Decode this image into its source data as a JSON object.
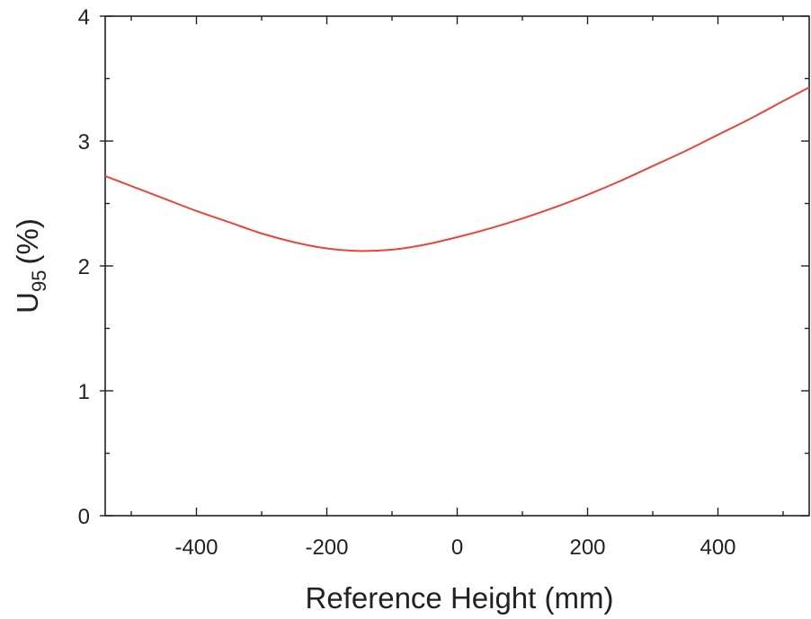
{
  "chart_data": {
    "type": "line",
    "title": "",
    "xlabel": "Reference Height (mm)",
    "ylabel_main": "U",
    "ylabel_sub": "95",
    "ylabel_unit": "(%)",
    "xlim": [
      -540,
      540
    ],
    "ylim": [
      0,
      4
    ],
    "x_ticks": [
      -400,
      -200,
      0,
      200,
      400
    ],
    "x_tick_labels": [
      "-400",
      "-200",
      "0",
      "200",
      "400"
    ],
    "y_ticks": [
      0,
      1,
      2,
      3,
      4
    ],
    "y_tick_labels": [
      "0",
      "1",
      "2",
      "3",
      "4"
    ],
    "x_minor_step": 100,
    "y_minor_step": 0.5,
    "grid": false,
    "series": [
      {
        "color": "#e8453c",
        "x": [
          -540,
          -500,
          -450,
          -400,
          -350,
          -300,
          -250,
          -200,
          -150,
          -100,
          -50,
          0,
          50,
          100,
          150,
          200,
          250,
          300,
          350,
          400,
          450,
          500,
          540
        ],
        "y": [
          2.72,
          2.64,
          2.54,
          2.44,
          2.35,
          2.26,
          2.19,
          2.14,
          2.12,
          2.13,
          2.17,
          2.23,
          2.3,
          2.38,
          2.47,
          2.57,
          2.68,
          2.8,
          2.92,
          3.05,
          3.18,
          3.32,
          3.43
        ]
      }
    ]
  }
}
